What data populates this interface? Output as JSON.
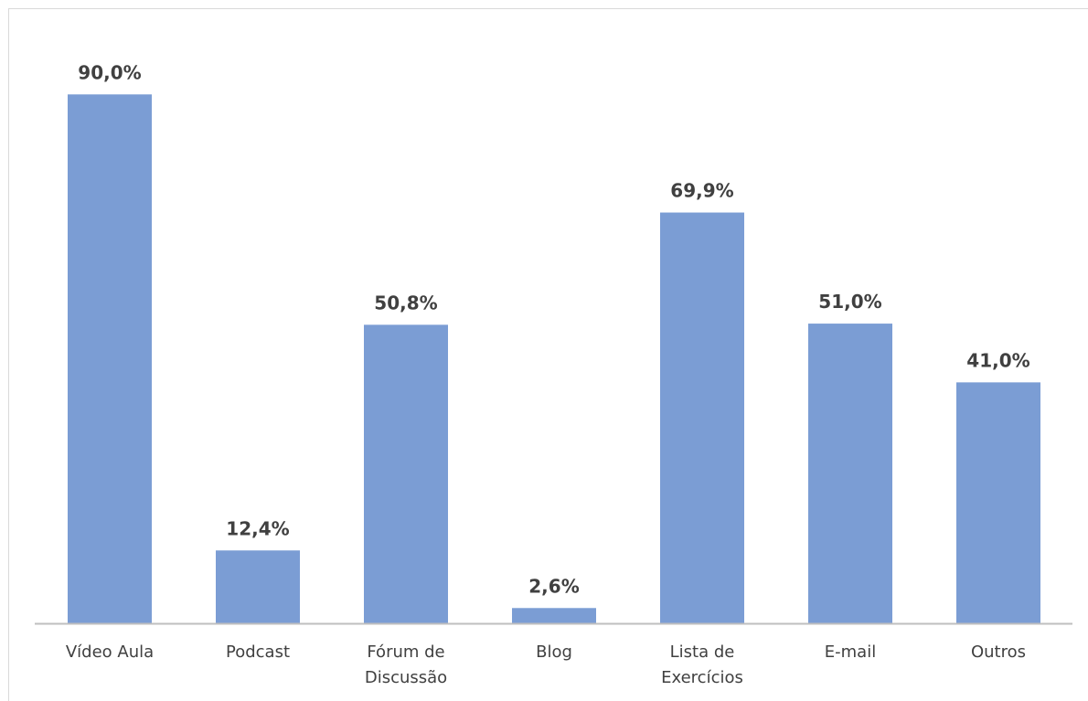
{
  "chart_data": {
    "type": "bar",
    "categories": [
      "Vídeo Aula",
      "Podcast",
      "Fórum de Discussão",
      "Blog",
      "Lista de Exercícios",
      "E-mail",
      "Outros"
    ],
    "values": [
      90.0,
      12.4,
      50.8,
      2.6,
      69.9,
      51.0,
      41.0
    ],
    "value_labels": [
      "90,0%",
      "12,4%",
      "50,8%",
      "2,6%",
      "69,9%",
      "51,0%",
      "41,0%"
    ],
    "color": "#7b9dd4",
    "ylim": [
      0,
      100
    ]
  }
}
